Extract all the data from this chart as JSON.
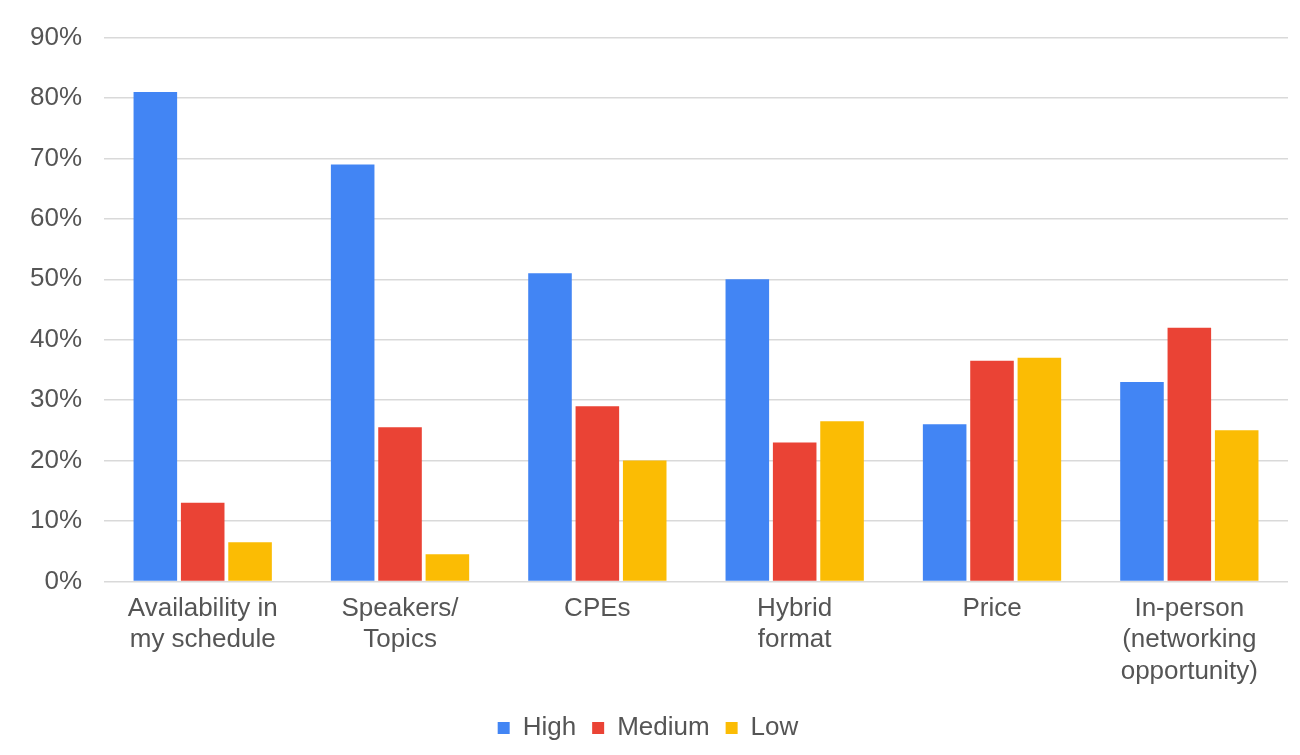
{
  "chart_data": {
    "type": "bar",
    "categories": [
      "Availability in\nmy schedule",
      "Speakers/\nTopics",
      "CPEs",
      "Hybrid\nformat",
      "Price",
      "In-person\n(networking\nopportunity)"
    ],
    "series": [
      {
        "name": "High",
        "color": "#4285f4",
        "values": [
          81,
          69,
          51,
          50,
          26,
          33
        ]
      },
      {
        "name": "Medium",
        "color": "#ea4335",
        "values": [
          13,
          25.5,
          29,
          23,
          36.5,
          42
        ]
      },
      {
        "name": "Low",
        "color": "#fbbc04",
        "values": [
          6.5,
          4.5,
          20,
          26.5,
          37,
          25
        ]
      }
    ],
    "ylim": [
      0,
      90
    ],
    "yticks": [
      {
        "value": 0,
        "label": "0%"
      },
      {
        "value": 10,
        "label": "10%"
      },
      {
        "value": 20,
        "label": "20%"
      },
      {
        "value": 30,
        "label": "30%"
      },
      {
        "value": 40,
        "label": "40%"
      },
      {
        "value": 50,
        "label": "50%"
      },
      {
        "value": 60,
        "label": "60%"
      },
      {
        "value": 70,
        "label": "70%"
      },
      {
        "value": 80,
        "label": "80%"
      },
      {
        "value": 90,
        "label": "90%"
      }
    ],
    "grid": "y",
    "legend": "bottom"
  }
}
